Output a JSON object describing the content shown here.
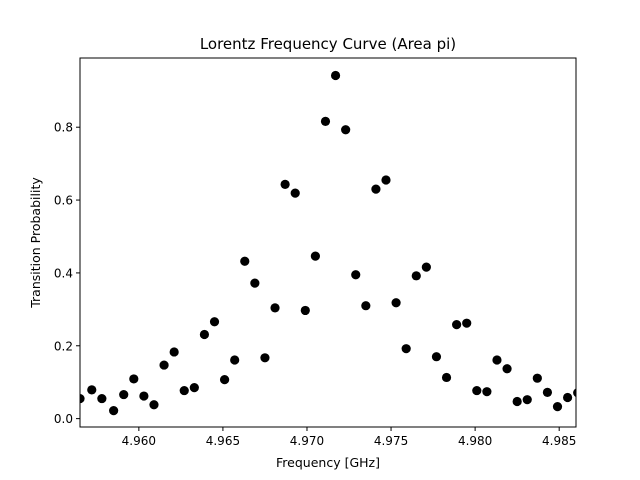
{
  "chart_data": {
    "type": "scatter",
    "title": "Lorentz Frequency Curve (Area pi)",
    "xlabel": "Frequency [GHz]",
    "ylabel": "Transition Probability",
    "xlim": [
      4.9565,
      4.986
    ],
    "ylim": [
      -0.023,
      0.99
    ],
    "grid": false,
    "x_ticks": [
      "4.960",
      "4.965",
      "4.970",
      "4.975",
      "4.980",
      "4.985"
    ],
    "y_ticks": [
      "0.0",
      "0.2",
      "0.4",
      "0.6",
      "0.8"
    ],
    "marker_color": "#000000",
    "series": [
      {
        "x": [
          4.9565,
          4.9572,
          4.9578,
          4.9585,
          4.9591,
          4.9597,
          4.9603,
          4.9609,
          4.9615,
          4.9621,
          4.9627,
          4.9633,
          4.9639,
          4.9645,
          4.9651,
          4.9657,
          4.9663,
          4.9669,
          4.9675,
          4.9681,
          4.9687,
          4.9693,
          4.9699,
          4.9705,
          4.9711,
          4.9717,
          4.9723,
          4.9729,
          4.9735,
          4.9741,
          4.9747,
          4.9753,
          4.9759,
          4.9765,
          4.9771,
          4.9777,
          4.9783,
          4.9789,
          4.9795,
          4.9801,
          4.9807,
          4.9813,
          4.9819,
          4.9825,
          4.9831,
          4.9837,
          4.9843,
          4.9849,
          4.9855,
          4.9861
        ],
        "y": [
          0.055,
          0.079,
          0.055,
          0.022,
          0.066,
          0.109,
          0.062,
          0.038,
          0.147,
          0.183,
          0.077,
          0.085,
          0.231,
          0.266,
          0.107,
          0.161,
          0.432,
          0.372,
          0.167,
          0.304,
          0.643,
          0.619,
          0.297,
          0.446,
          0.816,
          0.942,
          0.793,
          0.395,
          0.31,
          0.63,
          0.655,
          0.318,
          0.192,
          0.392,
          0.416,
          0.17,
          0.113,
          0.258,
          0.262,
          0.077,
          0.074,
          0.161,
          0.137,
          0.047,
          0.052,
          0.111,
          0.072,
          0.033,
          0.058,
          0.071
        ]
      }
    ]
  }
}
